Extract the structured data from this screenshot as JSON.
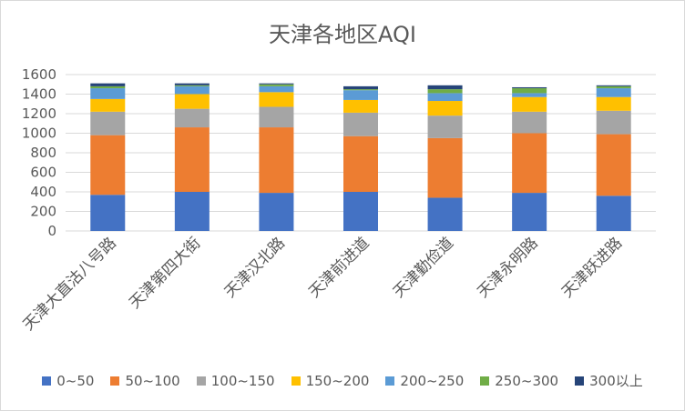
{
  "chart_data": {
    "type": "bar",
    "stacked": true,
    "title": "天津各地区AQI",
    "xlabel": "",
    "ylabel": "",
    "ylim": [
      0,
      1600
    ],
    "yticks": [
      0,
      200,
      400,
      600,
      800,
      1000,
      1200,
      1400,
      1600
    ],
    "grid": true,
    "legend_position": "bottom",
    "categories": [
      "天津大直沽八号路",
      "天津第四大街",
      "天津汉北路",
      "天津前进道",
      "天津勤俭道",
      "天津永明路",
      "天津跃进路"
    ],
    "series": [
      {
        "name": "0~50",
        "color": "#4472C4",
        "values": [
          370,
          400,
          390,
          400,
          340,
          390,
          360
        ]
      },
      {
        "name": "50~100",
        "color": "#ED7D31",
        "values": [
          610,
          660,
          670,
          570,
          610,
          610,
          630
        ]
      },
      {
        "name": "100~150",
        "color": "#A5A5A5",
        "values": [
          240,
          190,
          210,
          240,
          230,
          220,
          240
        ]
      },
      {
        "name": "150~200",
        "color": "#FFC000",
        "values": [
          130,
          150,
          150,
          130,
          150,
          150,
          140
        ]
      },
      {
        "name": "200~250",
        "color": "#5B9BD5",
        "values": [
          110,
          80,
          60,
          100,
          80,
          40,
          90
        ]
      },
      {
        "name": "250~300",
        "color": "#70AD47",
        "values": [
          20,
          10,
          20,
          10,
          40,
          50,
          20
        ]
      },
      {
        "name": "300以上",
        "color": "#264478",
        "values": [
          30,
          20,
          10,
          30,
          40,
          10,
          10
        ]
      }
    ]
  }
}
